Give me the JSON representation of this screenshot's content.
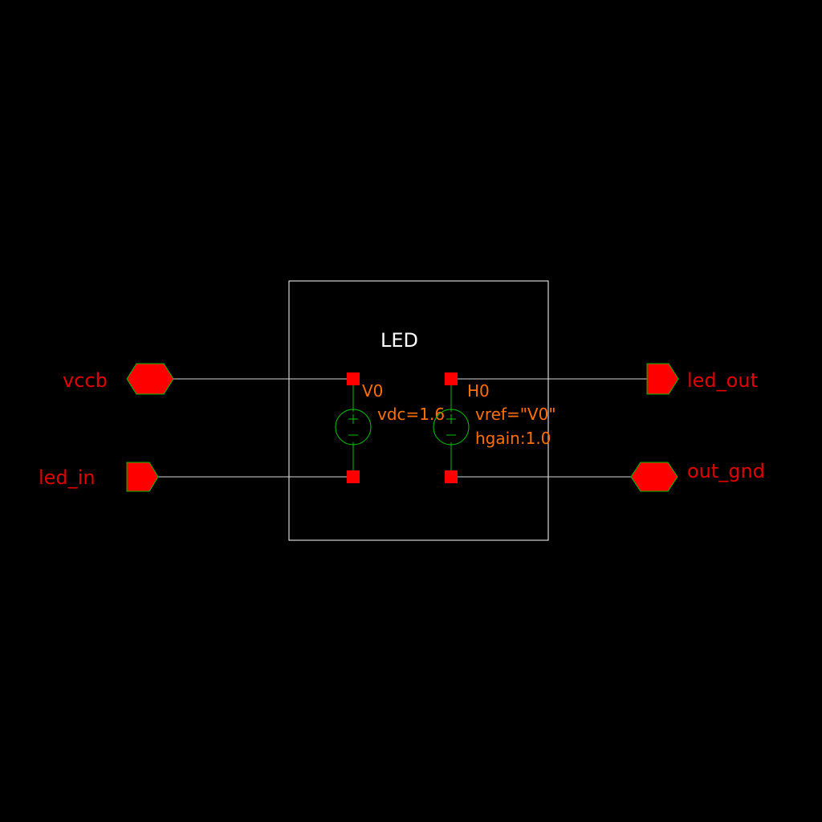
{
  "colors": {
    "background": "#000000",
    "frame": "#ffffff",
    "wire": "#d8d8d8",
    "pin": "#ff0000",
    "pin_label": "#e00000",
    "symbol": "#00c000",
    "instance_text": "#ff7000",
    "cell_text": "#ffffff"
  },
  "cell": {
    "name": "LED"
  },
  "pins": {
    "vccb": {
      "label": "vccb",
      "shape": "bidirectional"
    },
    "led_in": {
      "label": "led_in",
      "shape": "input"
    },
    "led_out": {
      "label": "led_out",
      "shape": "output"
    },
    "out_gnd": {
      "label": "out_gnd",
      "shape": "bidirectional"
    }
  },
  "instances": {
    "v0": {
      "name": "V0",
      "params": [
        "vdc=1.6"
      ]
    },
    "h0": {
      "name": "H0",
      "params": [
        "vref=\"V0\"",
        "hgain:1.0"
      ]
    }
  }
}
